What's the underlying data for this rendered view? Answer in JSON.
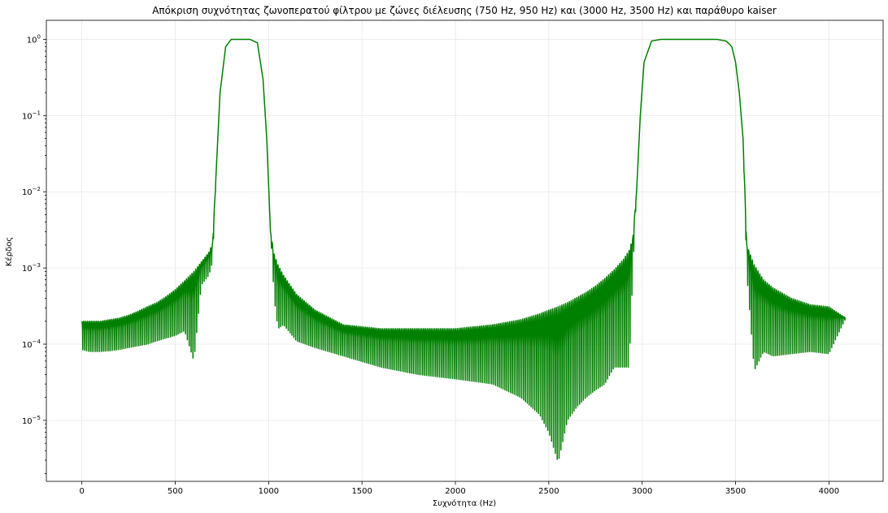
{
  "chart_data": {
    "type": "line",
    "title": "Απόκριση συχνότητας ζωνοπερατού φίλτρου με ζώνες διέλευσης (750 Hz, 950 Hz) και (3000 Hz, 3500 Hz) και παράθυρο kaiser",
    "xlabel": "Συχνότητα (Hz)",
    "ylabel": "Κέρδος",
    "xlim": [
      -190,
      4290
    ],
    "ylim_log10": [
      -5.8,
      0.25
    ],
    "yscale": "log",
    "grid": true,
    "line_color": "#008000",
    "x_ticks": [
      0,
      500,
      1000,
      1500,
      2000,
      2500,
      3000,
      3500,
      4000
    ],
    "y_ticks": [
      {
        "exp": 0,
        "label": "10",
        "sup": "0"
      },
      {
        "exp": -1,
        "label": "10",
        "sup": "−1"
      },
      {
        "exp": -2,
        "label": "10",
        "sup": "−2"
      },
      {
        "exp": -3,
        "label": "10",
        "sup": "−3"
      },
      {
        "exp": -4,
        "label": "10",
        "sup": "−4"
      },
      {
        "exp": -5,
        "label": "10",
        "sup": "−5"
      }
    ],
    "series": [
      {
        "name": "",
        "x": [
          0,
          40,
          100,
          150,
          200,
          250,
          300,
          350,
          400,
          450,
          500,
          550,
          600,
          640,
          680,
          700,
          720,
          740,
          770,
          800,
          850,
          900,
          940,
          970,
          990,
          1010,
          1030,
          1050,
          1080,
          1150,
          1250,
          1400,
          1600,
          1800,
          2000,
          2200,
          2350,
          2450,
          2500,
          2550,
          2600,
          2650,
          2700,
          2750,
          2800,
          2850,
          2900,
          2930,
          2950,
          2970,
          2990,
          3010,
          3050,
          3100,
          3200,
          3300,
          3400,
          3450,
          3480,
          3500,
          3520,
          3540,
          3560,
          3600,
          3650,
          3700,
          3800,
          3900,
          4000,
          4090
        ],
        "envelope_top": [
          0.0002,
          0.0002,
          0.0002,
          0.00021,
          0.00022,
          0.00024,
          0.00027,
          0.00031,
          0.00035,
          0.00042,
          0.00052,
          0.00068,
          0.0009,
          0.0012,
          0.0016,
          0.0021,
          0.02,
          0.2,
          0.8,
          1.0,
          1.0,
          1.0,
          0.9,
          0.3,
          0.05,
          0.003,
          0.0015,
          0.0011,
          0.0008,
          0.00045,
          0.00028,
          0.00018,
          0.00016,
          0.00016,
          0.00016,
          0.00018,
          0.00021,
          0.00025,
          0.00028,
          0.00031,
          0.00035,
          0.00041,
          0.00048,
          0.00058,
          0.00073,
          0.00095,
          0.0013,
          0.0017,
          0.0025,
          0.01,
          0.1,
          0.5,
          0.95,
          1.0,
          1.0,
          1.0,
          1.0,
          0.95,
          0.8,
          0.5,
          0.2,
          0.05,
          0.002,
          0.0011,
          0.0007,
          0.00055,
          0.0004,
          0.00033,
          0.00031,
          0.00022
        ],
        "envelope_bottom": [
          8.5e-05,
          8e-05,
          8e-05,
          8.2e-05,
          8.5e-05,
          9e-05,
          9.5e-05,
          0.0001,
          0.00011,
          0.00012,
          0.00013,
          0.00015,
          6e-05,
          0.0006,
          0.0008,
          0.0012,
          0.02,
          0.2,
          0.8,
          1.0,
          1.0,
          1.0,
          0.9,
          0.3,
          0.05,
          0.003,
          0.0004,
          0.00016,
          0.00018,
          0.00011,
          9e-05,
          7e-05,
          5e-05,
          4e-05,
          3.5e-05,
          3e-05,
          2e-05,
          1.2e-05,
          7e-06,
          2.8e-06,
          1e-05,
          1.5e-05,
          2e-05,
          2.5e-05,
          3e-05,
          5e-05,
          5e-05,
          5e-05,
          0.0009,
          0.01,
          0.1,
          0.5,
          0.95,
          1.0,
          1.0,
          1.0,
          1.0,
          0.95,
          0.8,
          0.5,
          0.2,
          0.05,
          0.00085,
          4.5e-05,
          8e-05,
          7e-05,
          7.5e-05,
          8e-05,
          7.5e-05,
          0.00022
        ],
        "ripple_spacing_hz": 20
      }
    ]
  }
}
